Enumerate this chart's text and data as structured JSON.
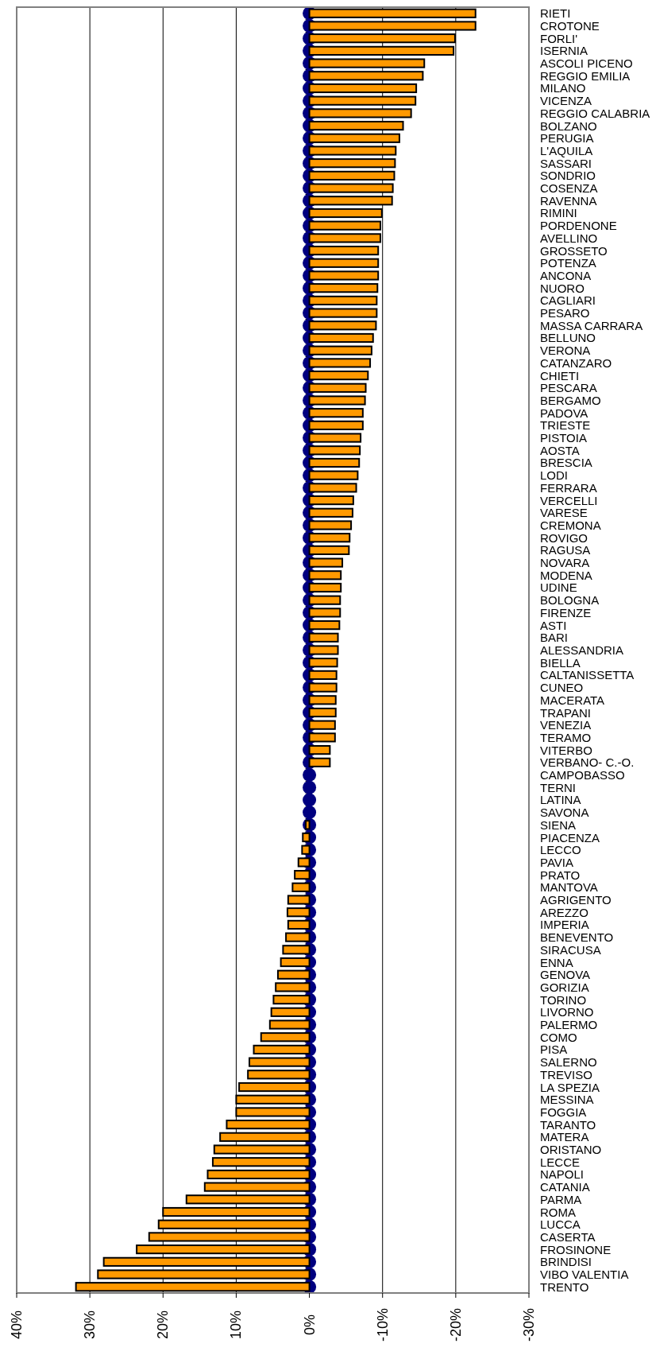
{
  "chart_data": {
    "type": "bar",
    "orientation": "horizontal",
    "grid": "x",
    "categories": [
      "RIETI",
      "CROTONE",
      "FORLI'",
      "ISERNIA",
      "ASCOLI PICENO",
      "REGGIO EMILIA",
      "MILANO",
      "VICENZA",
      "REGGIO CALABRIA",
      "BOLZANO",
      "PERUGIA",
      "L'AQUILA",
      "SASSARI",
      "SONDRIO",
      "COSENZA",
      "RAVENNA",
      "RIMINI",
      "PORDENONE",
      "AVELLINO",
      "GROSSETO",
      "POTENZA",
      "ANCONA",
      "NUORO",
      "CAGLIARI",
      "PESARO",
      "MASSA CARRARA",
      "BELLUNO",
      "VERONA",
      "CATANZARO",
      "CHIETI",
      "PESCARA",
      "BERGAMO",
      "PADOVA",
      "TRIESTE",
      "PISTOIA",
      "AOSTA",
      "BRESCIA",
      "LODI",
      "FERRARA",
      "VERCELLI",
      "VARESE",
      "CREMONA",
      "ROVIGO",
      "RAGUSA",
      "NOVARA",
      "MODENA",
      "UDINE",
      "BOLOGNA",
      "FIRENZE",
      "ASTI",
      "BARI",
      "ALESSANDRIA",
      "BIELLA",
      "CALTANISSETTA",
      "CUNEO",
      "MACERATA",
      "TRAPANI",
      "VENEZIA",
      "TERAMO",
      "VITERBO",
      "VERBANO- C.-O.",
      "CAMPOBASSO",
      "TERNI",
      "LATINA",
      "SAVONA",
      "SIENA",
      "PIACENZA",
      "LECCO",
      "PAVIA",
      "PRATO",
      "MANTOVA",
      "AGRIGENTO",
      "AREZZO",
      "IMPERIA",
      "BENEVENTO",
      "SIRACUSA",
      "ENNA",
      "GENOVA",
      "GORIZIA",
      "TORINO",
      "LIVORNO",
      "PALERMO",
      "COMO",
      "PISA",
      "SALERNO",
      "TREVISO",
      "LA SPEZIA",
      "MESSINA",
      "FOGGIA",
      "TARANTO",
      "MATERA",
      "ORISTANO",
      "LECCE",
      "NAPOLI",
      "CATANIA",
      "PARMA",
      "ROMA",
      "LUCCA",
      "CASERTA",
      "FROSINONE",
      "BRINDISI",
      "VIBO VALENTIA",
      "TRENTO"
    ],
    "series": [
      {
        "color": "#ff9900",
        "values": [
          -22.7,
          -22.7,
          -19.9,
          -19.7,
          -15.7,
          -15.5,
          -14.6,
          -14.5,
          -13.9,
          -12.8,
          -12.3,
          -11.8,
          -11.7,
          -11.6,
          -11.4,
          -11.3,
          -9.9,
          -9.7,
          -9.7,
          -9.4,
          -9.4,
          -9.4,
          -9.3,
          -9.2,
          -9.2,
          -9.1,
          -8.7,
          -8.5,
          -8.3,
          -8.0,
          -7.7,
          -7.6,
          -7.3,
          -7.3,
          -7.0,
          -6.9,
          -6.8,
          -6.6,
          -6.4,
          -6.0,
          -5.9,
          -5.7,
          -5.5,
          -5.4,
          -4.5,
          -4.3,
          -4.3,
          -4.2,
          -4.2,
          -4.1,
          -3.9,
          -3.9,
          -3.8,
          -3.7,
          -3.7,
          -3.6,
          -3.6,
          -3.5,
          -3.5,
          -2.8,
          -2.8,
          0,
          0,
          0,
          0,
          0.5,
          0.9,
          1.0,
          1.5,
          2.0,
          2.3,
          2.9,
          3.0,
          2.9,
          3.2,
          3.6,
          3.9,
          4.3,
          4.6,
          4.9,
          5.2,
          5.4,
          6.6,
          7.6,
          8.2,
          8.4,
          9.6,
          10.0,
          10.0,
          11.3,
          12.2,
          13.0,
          13.2,
          13.9,
          14.3,
          16.8,
          20.0,
          20.6,
          21.9,
          23.6,
          28.1,
          28.9,
          31.9
        ]
      },
      {
        "type": "scatter",
        "marker": "circle",
        "color": "#000080",
        "values": [
          0,
          0,
          0,
          0,
          0,
          0,
          0,
          0,
          0,
          0,
          0,
          0,
          0,
          0,
          0,
          0,
          0,
          0,
          0,
          0,
          0,
          0,
          0,
          0,
          0,
          0,
          0,
          0,
          0,
          0,
          0,
          0,
          0,
          0,
          0,
          0,
          0,
          0,
          0,
          0,
          0,
          0,
          0,
          0,
          0,
          0,
          0,
          0,
          0,
          0,
          0,
          0,
          0,
          0,
          0,
          0,
          0,
          0,
          0,
          0,
          0,
          0,
          0,
          0,
          0,
          0,
          0,
          0,
          0,
          0,
          0,
          0,
          0,
          0,
          0,
          0,
          0,
          0,
          0,
          0,
          0,
          0,
          0,
          0,
          0,
          0,
          0,
          0,
          0,
          0,
          0,
          0,
          0,
          0,
          0,
          0,
          0,
          0,
          0,
          0,
          0,
          0,
          0
        ]
      }
    ],
    "xlim": [
      40,
      -30
    ],
    "xticks": [
      {
        "value": 40,
        "label": "40%"
      },
      {
        "value": 30,
        "label": "30%"
      },
      {
        "value": 20,
        "label": "20%"
      },
      {
        "value": 10,
        "label": "10%"
      },
      {
        "value": 0,
        "label": "0%"
      },
      {
        "value": -10,
        "label": "-10%"
      },
      {
        "value": -20,
        "label": "-20%"
      },
      {
        "value": -30,
        "label": "-30%"
      }
    ]
  }
}
